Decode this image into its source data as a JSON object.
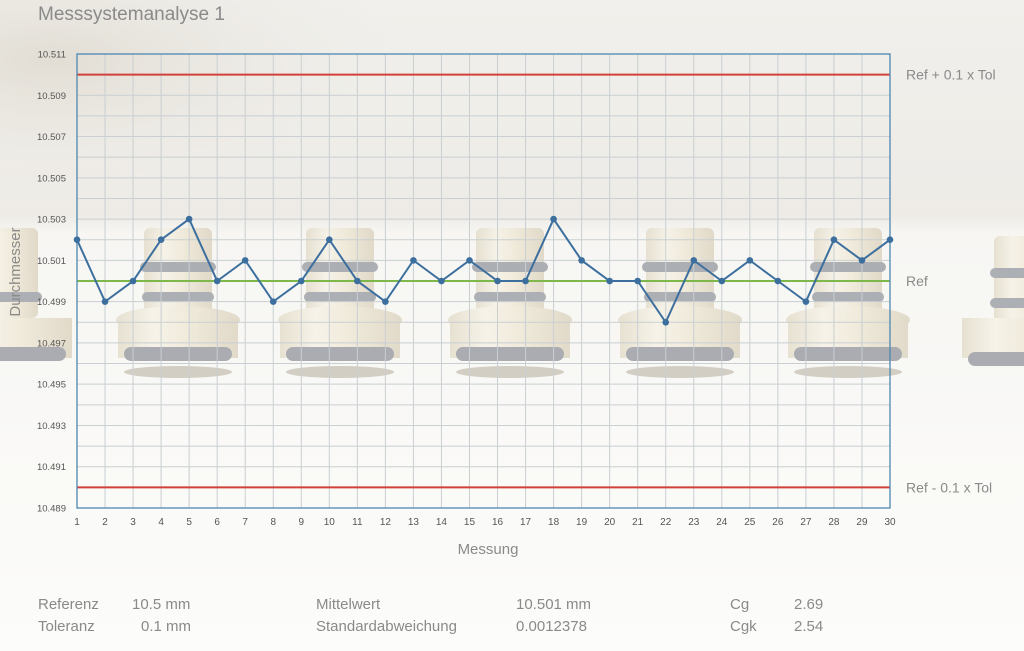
{
  "colors": {
    "series": "#3d6f9e",
    "limit": "#d2403a",
    "reference": "#7fb84a",
    "frame": "#4d87b0",
    "grid": "#c9cfd2",
    "text": "#8a8a8a"
  },
  "chart_data": {
    "type": "line",
    "title": "Messsystemanalyse 1",
    "xlabel": "Messung",
    "ylabel": "Durchmesser",
    "xlim": [
      1,
      30
    ],
    "ylim": [
      10.489,
      10.511
    ],
    "grid": true,
    "y_ticks": [
      "10.511",
      "10.509",
      "10.507",
      "10.505",
      "10.503",
      "10.501",
      "10.499",
      "10.497",
      "10.495",
      "10.493",
      "10.491",
      "10.489"
    ],
    "x": [
      1,
      2,
      3,
      4,
      5,
      6,
      7,
      8,
      9,
      10,
      11,
      12,
      13,
      14,
      15,
      16,
      17,
      18,
      19,
      20,
      21,
      22,
      23,
      24,
      25,
      26,
      27,
      28,
      29,
      30
    ],
    "series": [
      {
        "values": [
          10.502,
          10.499,
          10.5,
          10.502,
          10.503,
          10.5,
          10.501,
          10.499,
          10.5,
          10.502,
          10.5,
          10.499,
          10.501,
          10.5,
          10.501,
          10.5,
          10.5,
          10.503,
          10.501,
          10.5,
          10.5,
          10.498,
          10.501,
          10.5,
          10.501,
          10.5,
          10.499,
          10.502,
          10.501,
          10.502
        ]
      }
    ],
    "reference_lines": [
      {
        "label": "Ref + 0.1 x Tol",
        "value": 10.51,
        "color": "#d2403a"
      },
      {
        "label": "Ref",
        "value": 10.5,
        "color": "#7fb84a"
      },
      {
        "label": "Ref - 0.1 x Tol",
        "value": 10.49,
        "color": "#d2403a"
      }
    ]
  },
  "stats": {
    "referenz_label": "Referenz",
    "referenz_value": "10.5 mm",
    "toleranz_label": "Toleranz",
    "toleranz_value": "0.1 mm",
    "mittelwert_label": "Mittelwert",
    "mittelwert_value": "10.501 mm",
    "std_label": "Standardabweichung",
    "std_value": "0.0012378",
    "cg_label": "Cg",
    "cg_value": "2.69",
    "cgk_label": "Cgk",
    "cgk_value": "2.54"
  }
}
